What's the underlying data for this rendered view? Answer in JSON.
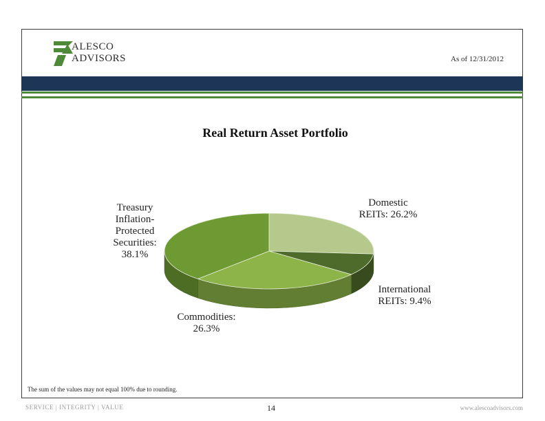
{
  "header": {
    "logo_line1": "ALESCO",
    "logo_line2": "ADVISORS",
    "as_of": "As of 12/31/2012"
  },
  "colors": {
    "navy_bar": "#1d3557",
    "green_rule": "#4f8a3a"
  },
  "chart_data": {
    "type": "pie",
    "title": "Real Return Asset Portfolio",
    "slices": [
      {
        "label": "Domestic REITs",
        "value": 26.2,
        "display": "26.2%",
        "color": "#b5c98d"
      },
      {
        "label": "International REITs",
        "value": 9.4,
        "display": "9.4%",
        "color": "#4f6b2b"
      },
      {
        "label": "Commodities",
        "value": 26.3,
        "display": "26.3%",
        "color": "#8cb449"
      },
      {
        "label": "Treasury Inflation-Protected Securities",
        "value": 38.1,
        "display": "38.1%",
        "color": "#6e9a34"
      }
    ],
    "labels": {
      "treasury": [
        "Treasury",
        "Inflation-",
        "Protected",
        "Securities:",
        "38.1%"
      ],
      "domestic": [
        "Domestic",
        "REITs: 26.2%"
      ],
      "international": [
        "International",
        "REITs: 9.4%"
      ],
      "commodities": [
        "Commodities:",
        "26.3%"
      ]
    }
  },
  "footnote": "The sum of the values may not equal 100% due to rounding.",
  "footer": {
    "tagline": "SERVICE  |  INTEGRITY  |  VALUE",
    "page_number": "14",
    "website": "www.alescoadvisors.com"
  }
}
